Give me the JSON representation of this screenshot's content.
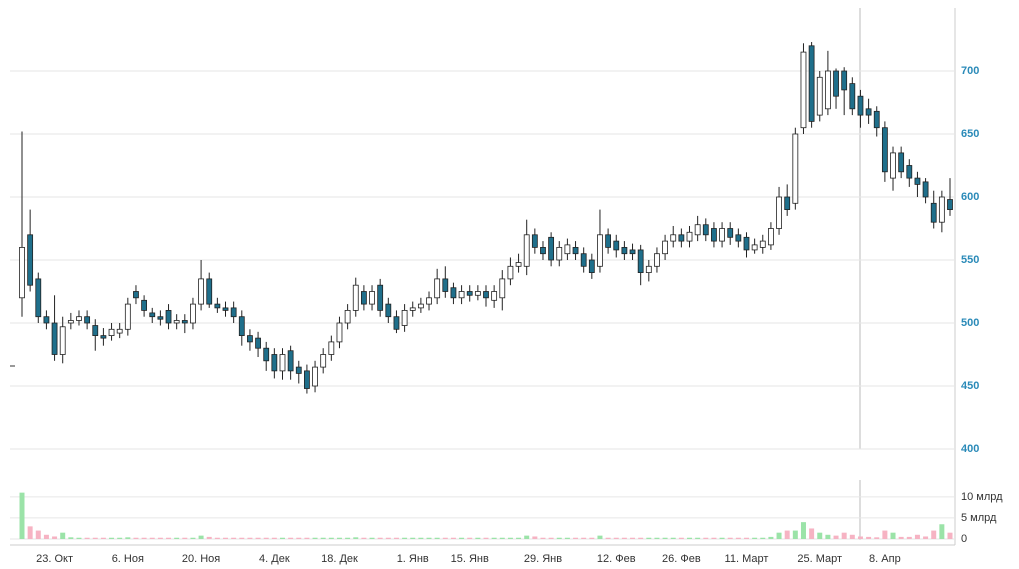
{
  "chart_data": {
    "type": "candlestick",
    "categories": [
      null,
      null,
      null,
      null,
      "23. Окт",
      null,
      null,
      null,
      null,
      null,
      null,
      null,
      null,
      "6. Ноя",
      null,
      null,
      null,
      null,
      null,
      null,
      null,
      null,
      "20. Ноя",
      null,
      null,
      null,
      null,
      null,
      null,
      null,
      null,
      "4. Дек",
      null,
      null,
      null,
      null,
      null,
      null,
      null,
      "18. Дек",
      null,
      null,
      null,
      null,
      null,
      null,
      null,
      null,
      "1. Янв",
      null,
      null,
      null,
      null,
      null,
      null,
      "15. Янв",
      null,
      null,
      null,
      null,
      null,
      null,
      null,
      null,
      "29. Янв",
      null,
      null,
      null,
      null,
      null,
      null,
      null,
      null,
      "12. Фев",
      null,
      null,
      null,
      null,
      null,
      null,
      null,
      "26. Фев",
      null,
      null,
      null,
      null,
      null,
      null,
      null,
      "11. Март",
      null,
      null,
      null,
      null,
      null,
      null,
      null,
      null,
      "25. Март",
      null,
      null,
      null,
      null,
      null,
      null,
      null,
      "8. Апр",
      null,
      null,
      null,
      null,
      null,
      null,
      null,
      null
    ],
    "open": [
      520,
      570,
      535,
      505,
      500,
      475,
      500,
      502,
      505,
      498,
      490,
      490,
      492,
      495,
      525,
      518,
      508,
      505,
      510,
      500,
      502,
      500,
      515,
      535,
      515,
      512,
      512,
      505,
      490,
      488,
      480,
      475,
      462,
      478,
      465,
      462,
      450,
      465,
      475,
      485,
      500,
      510,
      525,
      515,
      530,
      515,
      505,
      498,
      510,
      512,
      515,
      520,
      535,
      528,
      520,
      525,
      522,
      525,
      518,
      520,
      535,
      545,
      545,
      570,
      560,
      568,
      550,
      555,
      560,
      555,
      550,
      545,
      570,
      565,
      560,
      558,
      558,
      540,
      545,
      555,
      565,
      570,
      565,
      570,
      578,
      575,
      565,
      575,
      570,
      568,
      558,
      560,
      562,
      575,
      600,
      595,
      655,
      720,
      665,
      670,
      700,
      700,
      690,
      680,
      670,
      668,
      655,
      615,
      635,
      625,
      615,
      612,
      595,
      580,
      598
    ],
    "high": [
      652,
      590,
      540,
      510,
      522,
      505,
      508,
      510,
      510,
      503,
      496,
      500,
      500,
      520,
      530,
      522,
      512,
      510,
      515,
      507,
      507,
      520,
      550,
      540,
      520,
      517,
      517,
      510,
      495,
      493,
      485,
      480,
      480,
      482,
      470,
      467,
      470,
      480,
      490,
      505,
      515,
      536,
      530,
      530,
      535,
      520,
      510,
      515,
      517,
      520,
      525,
      543,
      545,
      532,
      530,
      530,
      530,
      530,
      530,
      542,
      552,
      555,
      582,
      575,
      565,
      572,
      565,
      567,
      565,
      560,
      555,
      590,
      575,
      570,
      565,
      563,
      562,
      550,
      560,
      570,
      577,
      575,
      577,
      585,
      583,
      580,
      580,
      580,
      575,
      572,
      567,
      570,
      580,
      608,
      610,
      655,
      722,
      723,
      700,
      716,
      702,
      703,
      695,
      685,
      678,
      672,
      660,
      640,
      640,
      630,
      620,
      615,
      605,
      605,
      615
    ],
    "low": [
      505,
      525,
      500,
      495,
      470,
      468,
      495,
      498,
      495,
      478,
      482,
      486,
      488,
      490,
      515,
      505,
      500,
      498,
      495,
      495,
      492,
      495,
      510,
      512,
      508,
      505,
      500,
      482,
      478,
      473,
      462,
      456,
      455,
      455,
      452,
      444,
      445,
      460,
      470,
      480,
      495,
      505,
      510,
      510,
      505,
      500,
      492,
      493,
      505,
      508,
      510,
      515,
      520,
      515,
      515,
      517,
      518,
      513,
      512,
      510,
      530,
      540,
      538,
      555,
      550,
      545,
      545,
      550,
      550,
      540,
      535,
      540,
      555,
      552,
      550,
      550,
      530,
      533,
      540,
      550,
      560,
      560,
      560,
      565,
      565,
      560,
      560,
      562,
      560,
      552,
      555,
      555,
      558,
      570,
      585,
      590,
      650,
      655,
      660,
      665,
      670,
      665,
      665,
      655,
      658,
      648,
      612,
      605,
      615,
      608,
      600,
      595,
      575,
      572,
      585
    ],
    "close": [
      560,
      530,
      505,
      500,
      475,
      497,
      502,
      505,
      500,
      490,
      488,
      495,
      495,
      515,
      520,
      510,
      505,
      503,
      500,
      502,
      500,
      515,
      535,
      515,
      512,
      510,
      505,
      490,
      485,
      480,
      470,
      462,
      475,
      462,
      460,
      448,
      465,
      475,
      485,
      500,
      510,
      530,
      515,
      525,
      510,
      505,
      495,
      510,
      512,
      515,
      520,
      535,
      525,
      520,
      525,
      522,
      525,
      520,
      525,
      535,
      545,
      548,
      570,
      560,
      555,
      550,
      560,
      562,
      555,
      545,
      540,
      570,
      560,
      558,
      555,
      555,
      540,
      545,
      555,
      565,
      570,
      565,
      572,
      578,
      570,
      565,
      575,
      568,
      565,
      558,
      562,
      565,
      575,
      600,
      590,
      650,
      715,
      660,
      695,
      700,
      680,
      685,
      670,
      665,
      665,
      655,
      620,
      635,
      620,
      615,
      610,
      600,
      580,
      600,
      590
    ],
    "up_color": "#ffffff",
    "down_color": "#1f6f8b",
    "ylim": [
      400,
      750
    ],
    "yticks": [
      400,
      450,
      500,
      550,
      600,
      650,
      700
    ],
    "grid": true,
    "volume": {
      "values": [
        11,
        3,
        2,
        1,
        0.6,
        1.5,
        0.4,
        0.3,
        0.3,
        0.3,
        0.3,
        0.3,
        0.3,
        0.4,
        0.3,
        0.3,
        0.3,
        0.3,
        0.3,
        0.3,
        0.3,
        0.3,
        0.8,
        0.5,
        0.3,
        0.3,
        0.3,
        0.3,
        0.3,
        0.3,
        0.3,
        0.3,
        0.3,
        0.3,
        0.3,
        0.3,
        0.3,
        0.3,
        0.3,
        0.3,
        0.3,
        0.4,
        0.3,
        0.3,
        0.3,
        0.3,
        0.3,
        0.3,
        0.3,
        0.3,
        0.3,
        0.3,
        0.3,
        0.3,
        0.3,
        0.3,
        0.3,
        0.3,
        0.3,
        0.3,
        0.3,
        0.3,
        0.8,
        0.6,
        0.3,
        0.3,
        0.3,
        0.3,
        0.3,
        0.3,
        0.3,
        0.8,
        0.3,
        0.3,
        0.3,
        0.3,
        0.3,
        0.3,
        0.3,
        0.3,
        0.3,
        0.3,
        0.3,
        0.3,
        0.3,
        0.3,
        0.3,
        0.3,
        0.3,
        0.3,
        0.3,
        0.3,
        0.5,
        1.5,
        2,
        2,
        4,
        2.5,
        1.5,
        1,
        0.8,
        1.5,
        1,
        0.6,
        0.5,
        0.4,
        2,
        1.5,
        0.5,
        0.5,
        1,
        0.6,
        2,
        3.5,
        1.5
      ],
      "ylim": [
        0,
        14
      ],
      "yticks": [
        0,
        {
          "value": 5,
          "label": "5 млрд"
        },
        {
          "value": 10,
          "label": "10 млрд"
        }
      ],
      "up_color": "#9be3a8",
      "down_color": "#f6b3c3"
    }
  }
}
